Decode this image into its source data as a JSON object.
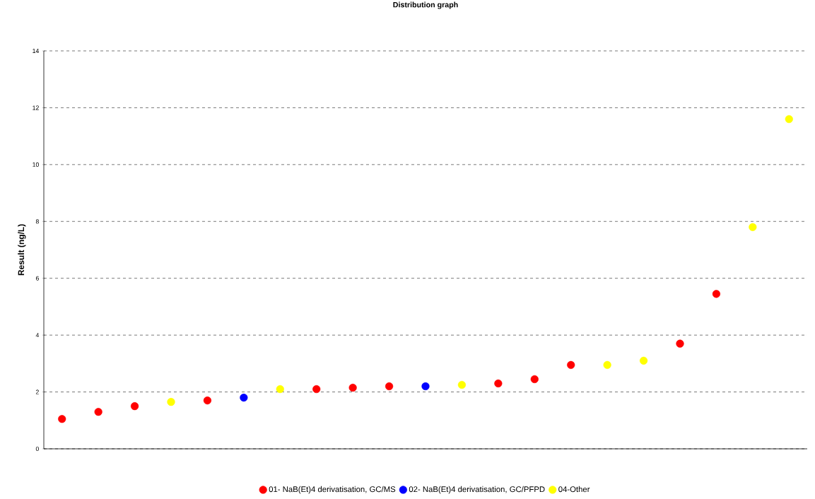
{
  "chart_data": {
    "type": "scatter",
    "title": "Distribution graph",
    "ylabel": "Result (ng/L)",
    "categories": [
      null,
      null,
      null,
      null,
      null,
      null,
      null,
      null,
      null,
      null,
      null,
      null,
      null,
      null,
      null,
      null,
      null,
      null,
      null,
      null,
      null
    ],
    "series": [
      {
        "name": "01- NaB(Et)4 derivatisation, GC/MS",
        "color": "#ff0000",
        "values": [
          1.05,
          1.3,
          1.5,
          null,
          1.7,
          null,
          null,
          2.1,
          2.15,
          2.2,
          null,
          null,
          2.3,
          2.45,
          2.95,
          null,
          null,
          3.7,
          5.45,
          null,
          null
        ]
      },
      {
        "name": "02- NaB(Et)4 derivatisation, GC/PFPD",
        "color": "#0000ff",
        "values": [
          null,
          null,
          null,
          null,
          null,
          1.8,
          null,
          null,
          null,
          null,
          2.2,
          null,
          null,
          null,
          null,
          null,
          null,
          null,
          null,
          null,
          null
        ]
      },
      {
        "name": "04-Other",
        "color": "#ffff00",
        "values": [
          null,
          null,
          null,
          1.65,
          null,
          null,
          2.1,
          null,
          null,
          null,
          null,
          2.25,
          null,
          null,
          null,
          2.95,
          3.1,
          null,
          null,
          7.8,
          11.6
        ]
      }
    ],
    "ylim": [
      0,
      14
    ],
    "yticks": [
      0,
      2,
      4,
      6,
      8,
      10,
      12,
      14
    ],
    "grid": "y",
    "legend": "bottom",
    "marker": "circle",
    "tick_labels": "y"
  }
}
